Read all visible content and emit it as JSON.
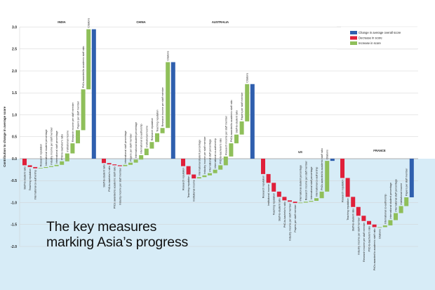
{
  "title_lines": [
    "The key measures",
    "marking Asia’s progress"
  ],
  "chart_data": {
    "type": "waterfall",
    "ylabel": "Contribution to change in average score",
    "ylim": [
      -2.0,
      3.0
    ],
    "yticks": [
      "3.0",
      "2.5",
      "2.0",
      "1.5",
      "1.0",
      "0.5",
      "0.0",
      "-0.5",
      "-1.0",
      "-1.5",
      "-2.0"
    ],
    "grid": true,
    "legend_placement": "top-right",
    "legend": [
      {
        "label": "Change in average overall score",
        "color": "#2f5fae"
      },
      {
        "label": "Decrease in score",
        "color": "#e0203a"
      },
      {
        "label": "Increase in score",
        "color": "#8fbf5a"
      }
    ],
    "below_zero_background": "#d7ecf7",
    "groups": [
      {
        "name": "INDIA",
        "total": 2.95,
        "steps": [
          {
            "label": "Staff-to-student ratio",
            "value": -0.15
          },
          {
            "label": "Teaching reputation",
            "value": -0.04
          },
          {
            "label": "International co-authorship",
            "value": -0.03
          },
          {
            "label": "Research reputation",
            "value": 0.01
          },
          {
            "label": "International student percentage",
            "value": 0.02
          },
          {
            "label": "Industry income per staff member",
            "value": 0.02
          },
          {
            "label": "International staff percentage",
            "value": 0.03
          },
          {
            "label": "PhD-to-bachelor's ratio",
            "value": 0.08
          },
          {
            "label": "Institutional income",
            "value": 0.18
          },
          {
            "label": "Research income per staff member",
            "value": 0.23
          },
          {
            "label": "Papers per staff member",
            "value": 0.3
          },
          {
            "label": "PhDs awarded to academic staff ratio",
            "value": 0.93
          },
          {
            "label": "Citations",
            "value": 1.37
          }
        ]
      },
      {
        "name": "CHINA",
        "total": 2.2,
        "steps": [
          {
            "label": "Staff-to-student ratio",
            "value": -0.1
          },
          {
            "label": "PhD-to-bachelor's ratio",
            "value": -0.03
          },
          {
            "label": "PhDs awarded to academic staff ratio",
            "value": -0.02
          },
          {
            "label": "Industry income per staff member",
            "value": -0.02
          },
          {
            "label": "International staff percentage",
            "value": 0.03
          },
          {
            "label": "Papers per staff member",
            "value": 0.05
          },
          {
            "label": "International student percentage",
            "value": 0.07
          },
          {
            "label": "International co-authorship",
            "value": 0.1
          },
          {
            "label": "Institutional income",
            "value": 0.15
          },
          {
            "label": "Research reputation",
            "value": 0.15
          },
          {
            "label": "Teaching reputation",
            "value": 0.2
          },
          {
            "label": "Research income per staff member",
            "value": 0.12
          },
          {
            "label": "Citations",
            "value": 1.5
          }
        ]
      },
      {
        "name": "AUSTRALIA",
        "total": 1.7,
        "steps": [
          {
            "label": "Research reputation",
            "value": -0.17
          },
          {
            "label": "Teaching reputation",
            "value": -0.19
          },
          {
            "label": "Institutional income",
            "value": -0.09
          },
          {
            "label": "International student percentage",
            "value": 0.03
          },
          {
            "label": "Industry income per staff member",
            "value": 0.04
          },
          {
            "label": "International staff percentage",
            "value": 0.05
          },
          {
            "label": "International co-authorship",
            "value": 0.08
          },
          {
            "label": "PhD-to-bachelor's ratio",
            "value": 0.1
          },
          {
            "label": "Research income per staff member",
            "value": 0.2
          },
          {
            "label": "PhDs awarded to academic staff ratio",
            "value": 0.3
          },
          {
            "label": "Staff-to-student ratio",
            "value": 0.2
          },
          {
            "label": "Papers per staff member",
            "value": 0.3
          },
          {
            "label": "Citations",
            "value": 0.85
          }
        ]
      },
      {
        "name": "US",
        "total": -0.05,
        "steps": [
          {
            "label": "Research reputation",
            "value": -0.35
          },
          {
            "label": "Institutional income",
            "value": -0.2
          },
          {
            "label": "Teaching reputation",
            "value": -0.2
          },
          {
            "label": "Staff-to-student ratio",
            "value": -0.12
          },
          {
            "label": "PhD-to-bachelor's ratio",
            "value": -0.08
          },
          {
            "label": "Industry income per staff member",
            "value": -0.03
          },
          {
            "label": "Papers per staff member",
            "value": -0.03
          },
          {
            "label": "International student percentage",
            "value": 0.01
          },
          {
            "label": "Research income per staff member",
            "value": 0.02
          },
          {
            "label": "International staff percentage",
            "value": 0.02
          },
          {
            "label": "International co-authorship",
            "value": 0.06
          },
          {
            "label": "PhDs awarded to academic staff ratio",
            "value": 0.15
          },
          {
            "label": "Citations",
            "value": 0.7
          }
        ]
      },
      {
        "name": "FRANCE",
        "total": -0.88,
        "steps": [
          {
            "label": "Research reputation",
            "value": -0.44
          },
          {
            "label": "Teaching reputation",
            "value": -0.43
          },
          {
            "label": "Staff-to-student ratio",
            "value": -0.23
          },
          {
            "label": "Industry income per staff member",
            "value": -0.2
          },
          {
            "label": "Research income per staff member",
            "value": -0.12
          },
          {
            "label": "PhD-to-bachelor's ratio",
            "value": -0.08
          },
          {
            "label": "PhDs awarded to academic staff ratio",
            "value": -0.06
          },
          {
            "label": "Citations",
            "value": 0.0
          },
          {
            "label": "International co-authorship",
            "value": 0.04
          },
          {
            "label": "International student percentage",
            "value": 0.12
          },
          {
            "label": "International staff percentage",
            "value": 0.16
          },
          {
            "label": "Institutional income",
            "value": 0.16
          },
          {
            "label": "Papers per staff member",
            "value": 0.2
          }
        ]
      }
    ]
  }
}
